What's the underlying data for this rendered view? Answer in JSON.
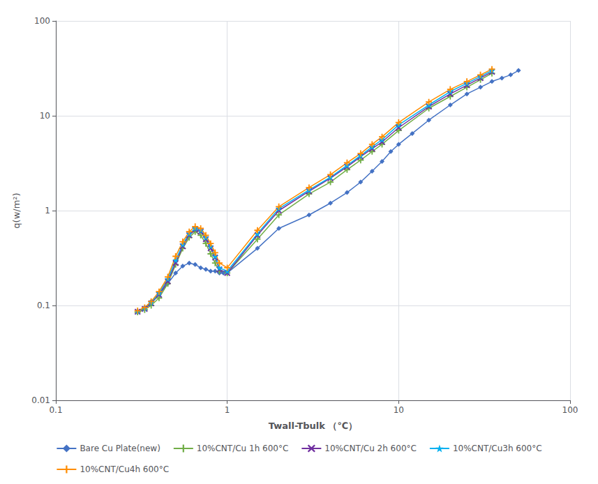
{
  "chart_data": {
    "type": "line",
    "xlabel": "Twall-Tbulk （℃）",
    "ylabel": "q(w/m²)",
    "log": true,
    "grid": true,
    "legend": "bottom",
    "xlim": [
      0.1,
      100
    ],
    "ylim": [
      0.01,
      100
    ],
    "xticks": [
      0.1,
      1,
      10,
      100
    ],
    "yticks": [
      0.01,
      0.1,
      1,
      10,
      100
    ],
    "series": [
      {
        "name": "Bare Cu Plate(new)",
        "color": "#4472C4",
        "marker": "diamond",
        "x": [
          0.3,
          0.33,
          0.36,
          0.4,
          0.45,
          0.5,
          0.55,
          0.6,
          0.65,
          0.7,
          0.75,
          0.8,
          0.85,
          0.9,
          0.95,
          1.0,
          1.5,
          2.0,
          3.0,
          4.0,
          5.0,
          6.0,
          7.0,
          8.0,
          9.0,
          10.0,
          12.0,
          15.0,
          20.0,
          25.0,
          30.0,
          35.0,
          40.0,
          45.0,
          50.0
        ],
        "values": [
          0.085,
          0.095,
          0.11,
          0.13,
          0.17,
          0.22,
          0.26,
          0.28,
          0.27,
          0.25,
          0.24,
          0.23,
          0.23,
          0.22,
          0.22,
          0.22,
          0.4,
          0.65,
          0.9,
          1.2,
          1.55,
          2.0,
          2.6,
          3.3,
          4.2,
          5.0,
          6.5,
          9.0,
          13.0,
          17.0,
          20.0,
          23.0,
          25.0,
          27.0,
          30.0
        ]
      },
      {
        "name": "10%CNT/Cu 1h 600°C",
        "color": "#70AD47",
        "marker": "plus",
        "x": [
          0.3,
          0.33,
          0.36,
          0.4,
          0.45,
          0.5,
          0.55,
          0.6,
          0.65,
          0.7,
          0.75,
          0.8,
          0.85,
          0.9,
          1.0,
          1.5,
          2.0,
          3.0,
          4.0,
          5.0,
          6.0,
          7.0,
          8.0,
          10.0,
          15.0,
          20.0,
          25.0,
          30.0,
          35.0
        ],
        "values": [
          0.085,
          0.09,
          0.1,
          0.12,
          0.17,
          0.27,
          0.4,
          0.52,
          0.6,
          0.55,
          0.45,
          0.35,
          0.28,
          0.23,
          0.22,
          0.5,
          0.9,
          1.5,
          2.0,
          2.7,
          3.4,
          4.2,
          5.0,
          7.0,
          12.0,
          16.0,
          20.0,
          24.0,
          28.0
        ]
      },
      {
        "name": "10%CNT/Cu 2h 600°C",
        "color": "#7030A0",
        "marker": "x",
        "x": [
          0.3,
          0.33,
          0.36,
          0.4,
          0.45,
          0.5,
          0.55,
          0.6,
          0.65,
          0.7,
          0.75,
          0.8,
          0.85,
          0.9,
          1.0,
          1.5,
          2.0,
          3.0,
          4.0,
          5.0,
          6.0,
          7.0,
          8.0,
          10.0,
          15.0,
          20.0,
          25.0,
          30.0,
          35.0
        ],
        "values": [
          0.086,
          0.092,
          0.105,
          0.13,
          0.18,
          0.28,
          0.42,
          0.55,
          0.63,
          0.6,
          0.5,
          0.4,
          0.32,
          0.24,
          0.22,
          0.55,
          1.0,
          1.6,
          2.2,
          2.9,
          3.7,
          4.5,
          5.3,
          7.5,
          12.5,
          17.0,
          21.0,
          25.0,
          29.0
        ]
      },
      {
        "name": "10%CNT/Cu3h 600°C",
        "color": "#00B0F0",
        "marker": "star",
        "x": [
          0.3,
          0.33,
          0.36,
          0.4,
          0.45,
          0.5,
          0.55,
          0.6,
          0.65,
          0.7,
          0.75,
          0.8,
          0.85,
          0.9,
          1.0,
          1.5,
          2.0,
          3.0,
          4.0,
          5.0,
          6.0,
          7.0,
          8.0,
          10.0,
          15.0,
          20.0,
          25.0,
          30.0,
          35.0
        ],
        "values": [
          0.087,
          0.093,
          0.107,
          0.135,
          0.19,
          0.3,
          0.44,
          0.57,
          0.65,
          0.62,
          0.52,
          0.42,
          0.33,
          0.25,
          0.23,
          0.57,
          1.05,
          1.65,
          2.25,
          3.0,
          3.8,
          4.7,
          5.6,
          8.0,
          13.0,
          18.0,
          22.0,
          26.0,
          30.0
        ]
      },
      {
        "name": "10%CNT/Cu4h 600°C",
        "color": "#FF8C00",
        "marker": "plus",
        "x": [
          0.3,
          0.33,
          0.36,
          0.4,
          0.45,
          0.5,
          0.55,
          0.6,
          0.65,
          0.7,
          0.75,
          0.8,
          0.85,
          0.9,
          1.0,
          1.5,
          2.0,
          3.0,
          4.0,
          5.0,
          6.0,
          7.0,
          8.0,
          10.0,
          15.0,
          20.0,
          25.0,
          30.0,
          35.0
        ],
        "values": [
          0.088,
          0.095,
          0.11,
          0.14,
          0.2,
          0.33,
          0.47,
          0.6,
          0.68,
          0.65,
          0.55,
          0.45,
          0.36,
          0.28,
          0.25,
          0.62,
          1.1,
          1.75,
          2.4,
          3.2,
          4.0,
          5.0,
          6.0,
          8.5,
          14.0,
          19.0,
          23.0,
          27.0,
          31.0
        ]
      }
    ]
  }
}
